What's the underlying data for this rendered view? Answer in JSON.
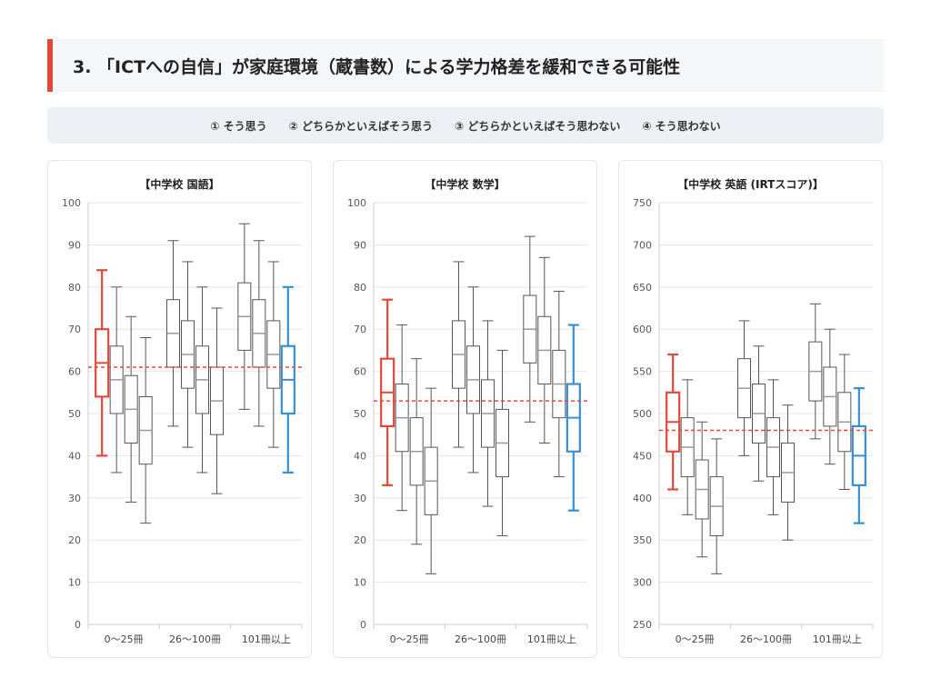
{
  "header": {
    "title": "3. 「ICTへの自信」が家庭環境（蔵書数）による学力格差を緩和できる可能性"
  },
  "legend": {
    "items": [
      "① そう思う",
      "② どちらかといえばそう思う",
      "③ どちらかといえばそう思わない",
      "④ そう思わない"
    ]
  },
  "colors": {
    "accent": "#e04a3a",
    "highlight_blue": "#3a8fd4",
    "neutral": "#555555",
    "reference_line": "#e04a3a"
  },
  "chart_data": [
    {
      "type": "box",
      "title": "【中学校 国語】",
      "categories": [
        "0〜25冊",
        "26〜100冊",
        "101冊以上"
      ],
      "ylim": [
        0,
        100
      ],
      "yticks": [
        0,
        10,
        20,
        30,
        40,
        50,
        60,
        70,
        80,
        90,
        100
      ],
      "reference_line": 61,
      "highlight": [
        {
          "group": 0,
          "box": 0,
          "color": "red"
        },
        {
          "group": 2,
          "box": 3,
          "color": "blue"
        }
      ],
      "groups": [
        [
          {
            "min": 40,
            "q1": 54,
            "median": 62,
            "q3": 70,
            "max": 84
          },
          {
            "min": 36,
            "q1": 50,
            "median": 58,
            "q3": 66,
            "max": 80
          },
          {
            "min": 29,
            "q1": 43,
            "median": 51,
            "q3": 59,
            "max": 73
          },
          {
            "min": 24,
            "q1": 38,
            "median": 46,
            "q3": 54,
            "max": 68
          }
        ],
        [
          {
            "min": 47,
            "q1": 61,
            "median": 69,
            "q3": 77,
            "max": 91
          },
          {
            "min": 42,
            "q1": 56,
            "median": 64,
            "q3": 72,
            "max": 86
          },
          {
            "min": 36,
            "q1": 50,
            "median": 58,
            "q3": 66,
            "max": 80
          },
          {
            "min": 31,
            "q1": 45,
            "median": 53,
            "q3": 61,
            "max": 75
          }
        ],
        [
          {
            "min": 51,
            "q1": 65,
            "median": 73,
            "q3": 81,
            "max": 95
          },
          {
            "min": 47,
            "q1": 61,
            "median": 69,
            "q3": 77,
            "max": 91
          },
          {
            "min": 42,
            "q1": 56,
            "median": 64,
            "q3": 72,
            "max": 86
          },
          {
            "min": 36,
            "q1": 50,
            "median": 58,
            "q3": 66,
            "max": 80
          }
        ]
      ]
    },
    {
      "type": "box",
      "title": "【中学校 数学】",
      "categories": [
        "0〜25冊",
        "26〜100冊",
        "101冊以上"
      ],
      "ylim": [
        0,
        100
      ],
      "yticks": [
        0,
        10,
        20,
        30,
        40,
        50,
        60,
        70,
        80,
        90,
        100
      ],
      "reference_line": 53,
      "highlight": [
        {
          "group": 0,
          "box": 0,
          "color": "red"
        },
        {
          "group": 2,
          "box": 3,
          "color": "blue"
        }
      ],
      "groups": [
        [
          {
            "min": 33,
            "q1": 47,
            "median": 55,
            "q3": 63,
            "max": 77
          },
          {
            "min": 27,
            "q1": 41,
            "median": 49,
            "q3": 57,
            "max": 71
          },
          {
            "min": 19,
            "q1": 33,
            "median": 41,
            "q3": 49,
            "max": 63
          },
          {
            "min": 12,
            "q1": 26,
            "median": 34,
            "q3": 42,
            "max": 56
          }
        ],
        [
          {
            "min": 42,
            "q1": 56,
            "median": 64,
            "q3": 72,
            "max": 86
          },
          {
            "min": 36,
            "q1": 50,
            "median": 58,
            "q3": 66,
            "max": 80
          },
          {
            "min": 28,
            "q1": 42,
            "median": 50,
            "q3": 58,
            "max": 72
          },
          {
            "min": 21,
            "q1": 35,
            "median": 43,
            "q3": 51,
            "max": 65
          }
        ],
        [
          {
            "min": 48,
            "q1": 62,
            "median": 70,
            "q3": 78,
            "max": 92
          },
          {
            "min": 43,
            "q1": 57,
            "median": 65,
            "q3": 73,
            "max": 87
          },
          {
            "min": 35,
            "q1": 49,
            "median": 57,
            "q3": 65,
            "max": 79
          },
          {
            "min": 27,
            "q1": 41,
            "median": 49,
            "q3": 57,
            "max": 71
          }
        ]
      ]
    },
    {
      "type": "box",
      "title": "【中学校 英語 (IRTスコア)】",
      "categories": [
        "0〜25冊",
        "26〜100冊",
        "101冊以上"
      ],
      "ylim": [
        250,
        750
      ],
      "yticks": [
        250,
        300,
        350,
        400,
        450,
        500,
        550,
        600,
        650,
        700,
        750
      ],
      "reference_line": 480,
      "highlight": [
        {
          "group": 0,
          "box": 0,
          "color": "red"
        },
        {
          "group": 2,
          "box": 3,
          "color": "blue"
        }
      ],
      "groups": [
        [
          {
            "min": 410,
            "q1": 455,
            "median": 490,
            "q3": 525,
            "max": 570
          },
          {
            "min": 380,
            "q1": 425,
            "median": 460,
            "q3": 495,
            "max": 540
          },
          {
            "min": 330,
            "q1": 375,
            "median": 410,
            "q3": 445,
            "max": 490
          },
          {
            "min": 310,
            "q1": 355,
            "median": 390,
            "q3": 425,
            "max": 470
          }
        ],
        [
          {
            "min": 450,
            "q1": 495,
            "median": 530,
            "q3": 565,
            "max": 610
          },
          {
            "min": 420,
            "q1": 465,
            "median": 500,
            "q3": 535,
            "max": 580
          },
          {
            "min": 380,
            "q1": 425,
            "median": 460,
            "q3": 495,
            "max": 540
          },
          {
            "min": 350,
            "q1": 395,
            "median": 430,
            "q3": 465,
            "max": 510
          }
        ],
        [
          {
            "min": 470,
            "q1": 515,
            "median": 550,
            "q3": 585,
            "max": 630
          },
          {
            "min": 440,
            "q1": 485,
            "median": 520,
            "q3": 555,
            "max": 600
          },
          {
            "min": 410,
            "q1": 455,
            "median": 490,
            "q3": 525,
            "max": 570
          },
          {
            "min": 370,
            "q1": 415,
            "median": 450,
            "q3": 485,
            "max": 530
          }
        ]
      ]
    }
  ]
}
